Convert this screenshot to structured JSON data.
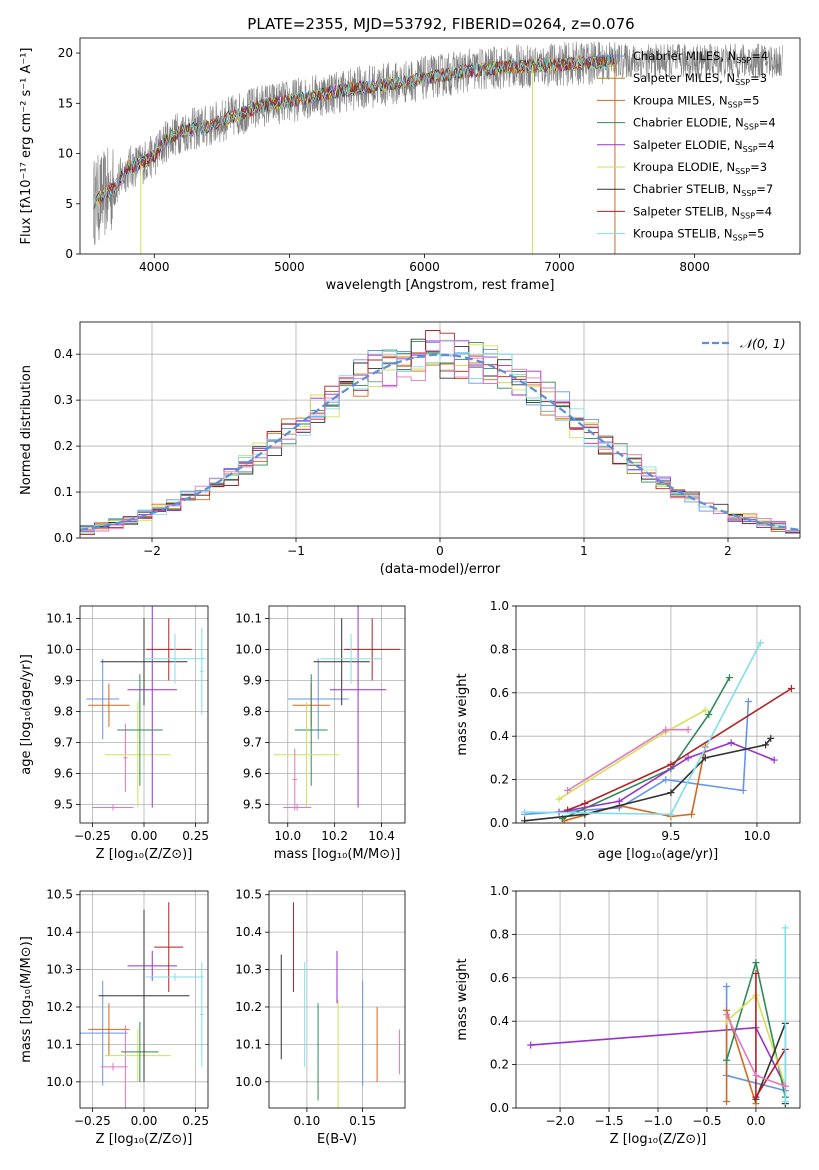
{
  "figure_title": "PLATE=2355, MJD=53792, FIBERID=0264, z=0.076",
  "colors": {
    "Chabrier MILES": "#6495ed",
    "Salpeter MILES": "#b8860b",
    "Kroupa MILES": "#d2691e",
    "Chabrier ELODIE": "#2e8b57",
    "Salpeter ELODIE": "#9932cc",
    "Kroupa ELODIE": "#d4e157",
    "Chabrier STELIB": "#333333",
    "Salpeter STELIB": "#b22222",
    "Kroupa STELIB": "#80deea",
    "pink": "#e377c2"
  },
  "chart_data": [
    {
      "id": "spectrum",
      "type": "line",
      "title": "PLATE=2355, MJD=53792, FIBERID=0264, z=0.076",
      "xlabel": "wavelength [Angstrom, rest frame]",
      "ylabel": "Flux [fλ10⁻¹⁷ erg cm⁻² s⁻¹ A⁻¹]",
      "xlim": [
        3450,
        8780
      ],
      "ylim": [
        0,
        21.5
      ],
      "xticks": [
        4000,
        5000,
        6000,
        7000,
        8000
      ],
      "yticks": [
        0,
        5,
        10,
        15,
        20
      ],
      "grid": false,
      "legend": "upper-right",
      "continuum": [
        [
          3550,
          5.2
        ],
        [
          3700,
          6.5
        ],
        [
          3800,
          8.5
        ],
        [
          3900,
          9.0
        ],
        [
          4000,
          9.8
        ],
        [
          4100,
          11.5
        ],
        [
          4200,
          12.2
        ],
        [
          4400,
          12.7
        ],
        [
          4600,
          13.8
        ],
        [
          4800,
          14.8
        ],
        [
          5000,
          15.2
        ],
        [
          5200,
          15.8
        ],
        [
          5500,
          16.5
        ],
        [
          5800,
          17.0
        ],
        [
          6000,
          17.5
        ],
        [
          6300,
          18.2
        ],
        [
          6600,
          18.6
        ],
        [
          6900,
          18.8
        ],
        [
          7200,
          19.0
        ],
        [
          7420,
          19.2
        ]
      ],
      "data_extent": [
        3550,
        8650
      ],
      "model_extent": [
        3550,
        7420
      ],
      "legend_entries": [
        {
          "label": "Chabrier MILES, N",
          "sub": "SSP",
          "suffix": "=4",
          "color": "#6495ed"
        },
        {
          "label": "Salpeter MILES, N",
          "sub": "SSP",
          "suffix": "=3",
          "color": "#b8860b"
        },
        {
          "label": "Kroupa MILES, N",
          "sub": "SSP",
          "suffix": "=5",
          "color": "#d2691e"
        },
        {
          "label": "Chabrier ELODIE, N",
          "sub": "SSP",
          "suffix": "=4",
          "color": "#2e8b57"
        },
        {
          "label": "Salpeter ELODIE, N",
          "sub": "SSP",
          "suffix": "=4",
          "color": "#9932cc"
        },
        {
          "label": "Kroupa ELODIE, N",
          "sub": "SSP",
          "suffix": "=3",
          "color": "#d4e157"
        },
        {
          "label": "Chabrier STELIB, N",
          "sub": "SSP",
          "suffix": "=7",
          "color": "#333333"
        },
        {
          "label": "Salpeter STELIB, N",
          "sub": "SSP",
          "suffix": "=4",
          "color": "#b22222"
        },
        {
          "label": "Kroupa STELIB, N",
          "sub": "SSP",
          "suffix": "=5",
          "color": "#80deea"
        }
      ],
      "cutoffs": [
        {
          "x": 3900,
          "color": "#d4e157"
        },
        {
          "x": 6800,
          "color": "#d4e157"
        },
        {
          "x": 7410,
          "color": "#d2691e"
        }
      ]
    },
    {
      "id": "residuals",
      "type": "line",
      "xlabel": "(data-model)/error",
      "ylabel": "Normed distribution",
      "xlim": [
        -2.5,
        2.5
      ],
      "ylim": [
        0,
        0.47
      ],
      "xticks": [
        -2,
        -1,
        0,
        1,
        2
      ],
      "xtick_labels": [
        "−2",
        "−1",
        "0",
        "1",
        "2"
      ],
      "yticks": [
        0.0,
        0.1,
        0.2,
        0.3,
        0.4
      ],
      "grid": true,
      "legend": "upper-right",
      "legend_label": "𝒩(0, 1)",
      "bin_width": 0.1,
      "series_colors": [
        "#6495ed",
        "#d2691e",
        "#2e8b57",
        "#9932cc",
        "#d4e157",
        "#333333",
        "#b22222",
        "#80deea",
        "#e377c2"
      ]
    },
    {
      "id": "age_vs_Z",
      "type": "scatter",
      "xlabel": "Z [log₁₀(Z/Z⊙)]",
      "ylabel": "age  [log₁₀(age/yr)]",
      "xlim": [
        -0.31,
        0.31
      ],
      "ylim": [
        9.44,
        10.14
      ],
      "xticks": [
        -0.25,
        0.0,
        0.25
      ],
      "xtick_labels": [
        "−0.25",
        "0.00",
        "0.25"
      ],
      "yticks": [
        9.5,
        9.6,
        9.7,
        9.8,
        9.9,
        10.0,
        10.1
      ],
      "grid": true,
      "points": [
        {
          "x": -0.2,
          "y": 9.84,
          "xerr": 0.08,
          "yerr": 0.13,
          "color": "#6495ed"
        },
        {
          "x": -0.17,
          "y": 9.82,
          "xerr": 0.1,
          "yerr": 0.07,
          "color": "#d2691e"
        },
        {
          "x": -0.15,
          "y": 9.49,
          "xerr": 0.1,
          "yerr": 0.01,
          "color": "#e377c2"
        },
        {
          "x": -0.09,
          "y": 9.65,
          "xerr": 0.01,
          "yerr": 0.11,
          "color": "#e377c2"
        },
        {
          "x": -0.03,
          "y": 9.66,
          "xerr": 0.16,
          "yerr": 0.17,
          "color": "#d4e157"
        },
        {
          "x": -0.02,
          "y": 9.74,
          "xerr": 0.11,
          "yerr": 0.18,
          "color": "#2e8b57"
        },
        {
          "x": 0.0,
          "y": 9.96,
          "xerr": 0.21,
          "yerr": 0.14,
          "color": "#333333"
        },
        {
          "x": 0.04,
          "y": 9.87,
          "xerr": 0.12,
          "yerr": 0.38,
          "color": "#9932cc"
        },
        {
          "x": 0.12,
          "y": 10.0,
          "xerr": 0.11,
          "yerr": 0.1,
          "color": "#b22222"
        },
        {
          "x": 0.15,
          "y": 9.97,
          "xerr": 0.15,
          "yerr": 0.08,
          "color": "#80deea"
        },
        {
          "x": 0.28,
          "y": 9.93,
          "xerr": 0.01,
          "yerr": 0.14,
          "color": "#80deea"
        }
      ]
    },
    {
      "id": "age_vs_mass",
      "type": "scatter",
      "xlabel": "mass [log₁₀(M/M⊙)]",
      "ylabel": "",
      "xlim": [
        9.92,
        10.5
      ],
      "ylim": [
        9.44,
        10.14
      ],
      "xticks": [
        10.0,
        10.2,
        10.4
      ],
      "xtick_labels": [
        "10.0",
        "10.2",
        "10.4"
      ],
      "yticks": [
        9.5,
        9.6,
        9.7,
        9.8,
        9.9,
        10.0,
        10.1
      ],
      "grid": true,
      "points": [
        {
          "x": 10.13,
          "y": 9.84,
          "xerr": 0.13,
          "yerr": 0.13,
          "color": "#6495ed"
        },
        {
          "x": 10.1,
          "y": 9.82,
          "xerr": 0.08,
          "yerr": 0.07,
          "color": "#d2691e"
        },
        {
          "x": 10.1,
          "y": 9.74,
          "xerr": 0.07,
          "yerr": 0.18,
          "color": "#2e8b57"
        },
        {
          "x": 10.08,
          "y": 9.66,
          "xerr": 0.14,
          "yerr": 0.17,
          "color": "#d4e157"
        },
        {
          "x": 10.04,
          "y": 9.49,
          "xerr": 0.06,
          "yerr": 0.01,
          "color": "#e377c2"
        },
        {
          "x": 10.03,
          "y": 9.58,
          "xerr": 0.01,
          "yerr": 0.1,
          "color": "#e377c2"
        },
        {
          "x": 10.23,
          "y": 9.96,
          "xerr": 0.12,
          "yerr": 0.14,
          "color": "#333333"
        },
        {
          "x": 10.3,
          "y": 9.87,
          "xerr": 0.12,
          "yerr": 0.38,
          "color": "#9932cc"
        },
        {
          "x": 10.36,
          "y": 10.0,
          "xerr": 0.12,
          "yerr": 0.1,
          "color": "#b22222"
        },
        {
          "x": 10.27,
          "y": 9.97,
          "xerr": 0.13,
          "yerr": 0.08,
          "color": "#80deea"
        }
      ]
    },
    {
      "id": "mass_weight_vs_age",
      "type": "line",
      "xlabel": "age  [log₁₀(age/yr)]",
      "ylabel": "mass weight",
      "xlim": [
        8.6,
        10.25
      ],
      "ylim": [
        0,
        1.0
      ],
      "xticks": [
        9.0,
        9.5,
        10.0
      ],
      "xtick_labels": [
        "9.0",
        "9.5",
        "10.0"
      ],
      "yticks": [
        0.0,
        0.2,
        0.4,
        0.6,
        0.8,
        1.0
      ],
      "grid": true,
      "series": [
        {
          "color": "#6495ed",
          "points": [
            [
              8.65,
              0.04
            ],
            [
              9.2,
              0.07
            ],
            [
              9.47,
              0.2
            ],
            [
              9.92,
              0.15
            ],
            [
              9.95,
              0.56
            ]
          ]
        },
        {
          "color": "#d2691e",
          "points": [
            [
              8.88,
              0.01
            ],
            [
              9.2,
              0.08
            ],
            [
              9.5,
              0.03
            ],
            [
              9.62,
              0.04
            ],
            [
              9.7,
              0.35
            ]
          ]
        },
        {
          "color": "#2e8b57",
          "points": [
            [
              8.87,
              0.02
            ],
            [
              9.5,
              0.25
            ],
            [
              9.72,
              0.5
            ],
            [
              9.84,
              0.67
            ]
          ]
        },
        {
          "color": "#9932cc",
          "points": [
            [
              8.85,
              0.05
            ],
            [
              9.2,
              0.1
            ],
            [
              9.6,
              0.3
            ],
            [
              9.85,
              0.37
            ],
            [
              10.1,
              0.29
            ]
          ]
        },
        {
          "color": "#d4e157",
          "points": [
            [
              8.85,
              0.11
            ],
            [
              9.47,
              0.42
            ],
            [
              9.7,
              0.52
            ]
          ]
        },
        {
          "color": "#333333",
          "points": [
            [
              8.65,
              0.01
            ],
            [
              9.0,
              0.04
            ],
            [
              9.5,
              0.14
            ],
            [
              9.7,
              0.3
            ],
            [
              10.05,
              0.36
            ],
            [
              10.08,
              0.39
            ]
          ]
        },
        {
          "color": "#b22222",
          "points": [
            [
              8.9,
              0.06
            ],
            [
              9.0,
              0.09
            ],
            [
              9.5,
              0.27
            ],
            [
              10.2,
              0.62
            ]
          ]
        },
        {
          "color": "#80deea",
          "points": [
            [
              8.65,
              0.05
            ],
            [
              9.5,
              0.04
            ],
            [
              10.02,
              0.83
            ]
          ]
        },
        {
          "color": "#e377c2",
          "points": [
            [
              8.9,
              0.15
            ],
            [
              9.47,
              0.43
            ],
            [
              9.6,
              0.43
            ]
          ]
        }
      ]
    },
    {
      "id": "mass_vs_Z",
      "type": "scatter",
      "xlabel": "Z [log₁₀(Z/Z⊙)]",
      "ylabel": "mass [log₁₀(M/M⊙)]",
      "xlim": [
        -0.31,
        0.31
      ],
      "ylim": [
        9.93,
        10.51
      ],
      "xticks": [
        -0.25,
        0.0,
        0.25
      ],
      "xtick_labels": [
        "−0.25",
        "0.00",
        "0.25"
      ],
      "yticks": [
        10.0,
        10.1,
        10.2,
        10.3,
        10.4,
        10.5
      ],
      "grid": true,
      "points": [
        {
          "x": -0.2,
          "y": 10.13,
          "xerr": 0.12,
          "yerr": 0.14,
          "color": "#6495ed"
        },
        {
          "x": -0.17,
          "y": 10.14,
          "xerr": 0.1,
          "yerr": 0.07,
          "color": "#d2691e"
        },
        {
          "x": -0.15,
          "y": 10.04,
          "xerr": 0.06,
          "yerr": 0.01,
          "color": "#e377c2"
        },
        {
          "x": -0.09,
          "y": 10.04,
          "xerr": 0.01,
          "yerr": 0.11,
          "color": "#e377c2"
        },
        {
          "x": -0.03,
          "y": 10.07,
          "xerr": 0.16,
          "yerr": 0.07,
          "color": "#d4e157"
        },
        {
          "x": -0.02,
          "y": 10.08,
          "xerr": 0.09,
          "yerr": 0.08,
          "color": "#2e8b57"
        },
        {
          "x": 0.0,
          "y": 10.23,
          "xerr": 0.22,
          "yerr": 0.23,
          "color": "#333333"
        },
        {
          "x": 0.04,
          "y": 10.31,
          "xerr": 0.12,
          "yerr": 0.04,
          "color": "#9932cc"
        },
        {
          "x": 0.12,
          "y": 10.36,
          "xerr": 0.07,
          "yerr": 0.12,
          "color": "#b22222"
        },
        {
          "x": 0.15,
          "y": 10.28,
          "xerr": 0.14,
          "yerr": 0.01,
          "color": "#80deea"
        },
        {
          "x": 0.28,
          "y": 10.18,
          "xerr": 0.01,
          "yerr": 0.14,
          "color": "#80deea"
        }
      ]
    },
    {
      "id": "mass_vs_ebv",
      "type": "scatter",
      "xlabel": "E(B-V)",
      "ylabel": "",
      "xlim": [
        0.066,
        0.188
      ],
      "ylim": [
        9.93,
        10.51
      ],
      "xticks": [
        0.1,
        0.15
      ],
      "xtick_labels": [
        "0.10",
        "0.15"
      ],
      "yticks": [
        10.0,
        10.1,
        10.2,
        10.3,
        10.4,
        10.5
      ],
      "grid": true,
      "points": [
        {
          "x": 0.077,
          "y": 10.2,
          "yerr": 0.14,
          "color": "#333333"
        },
        {
          "x": 0.088,
          "y": 10.36,
          "yerr": 0.12,
          "color": "#b22222"
        },
        {
          "x": 0.098,
          "y": 10.18,
          "yerr": 0.14,
          "color": "#80deea"
        },
        {
          "x": 0.11,
          "y": 10.08,
          "yerr": 0.13,
          "color": "#2e8b57"
        },
        {
          "x": 0.127,
          "y": 10.28,
          "yerr": 0.07,
          "color": "#9932cc"
        },
        {
          "x": 0.128,
          "y": 10.07,
          "yerr": 0.15,
          "color": "#d4e157"
        },
        {
          "x": 0.15,
          "y": 10.13,
          "yerr": 0.14,
          "color": "#6495ed"
        },
        {
          "x": 0.163,
          "y": 10.1,
          "yerr": 0.1,
          "color": "#d2691e"
        },
        {
          "x": 0.183,
          "y": 10.08,
          "yerr": 0.06,
          "color": "#e377c2"
        }
      ]
    },
    {
      "id": "mass_weight_vs_Z",
      "type": "line",
      "xlabel": "Z [log₁₀(Z/Z⊙)]",
      "ylabel": "mass weight",
      "xlim": [
        -2.45,
        0.45
      ],
      "ylim": [
        0,
        1.0
      ],
      "xticks": [
        -2.0,
        -1.5,
        -1.0,
        -0.5,
        0.0
      ],
      "xtick_labels": [
        "−2.0",
        "−1.5",
        "−1.0",
        "−0.5",
        "0.0"
      ],
      "yticks": [
        0.0,
        0.2,
        0.4,
        0.6,
        0.8,
        1.0
      ],
      "grid": true,
      "series": [
        {
          "color": "#9932cc",
          "points": [
            [
              -2.3,
              0.29
            ],
            [
              0.0,
              0.37
            ],
            [
              0.3,
              0.1
            ]
          ]
        },
        {
          "color": "#6495ed",
          "points": [
            [
              -0.3,
              0.56
            ],
            [
              -0.3,
              0.15
            ],
            [
              0.3,
              0.08
            ]
          ]
        },
        {
          "color": "#d2691e",
          "points": [
            [
              -0.3,
              0.03
            ],
            [
              -0.3,
              0.45
            ],
            [
              0.0,
              0.02
            ]
          ]
        },
        {
          "color": "#2e8b57",
          "points": [
            [
              -0.3,
              0.22
            ],
            [
              0.0,
              0.67
            ],
            [
              0.3,
              0.05
            ]
          ]
        },
        {
          "color": "#d4e157",
          "points": [
            [
              -0.3,
              0.4
            ],
            [
              0.0,
              0.52
            ],
            [
              0.3,
              0.1
            ]
          ]
        },
        {
          "color": "#333333",
          "points": [
            [
              0.0,
              0.04
            ],
            [
              0.3,
              0.39
            ],
            [
              0.3,
              0.02
            ]
          ]
        },
        {
          "color": "#b22222",
          "points": [
            [
              0.0,
              0.62
            ],
            [
              0.0,
              0.05
            ],
            [
              0.3,
              0.27
            ]
          ]
        },
        {
          "color": "#80deea",
          "points": [
            [
              0.3,
              0.83
            ],
            [
              0.3,
              0.03
            ]
          ]
        },
        {
          "color": "#e377c2",
          "points": [
            [
              -0.3,
              0.43
            ],
            [
              0.0,
              0.15
            ],
            [
              0.3,
              0.1
            ]
          ]
        }
      ]
    }
  ]
}
